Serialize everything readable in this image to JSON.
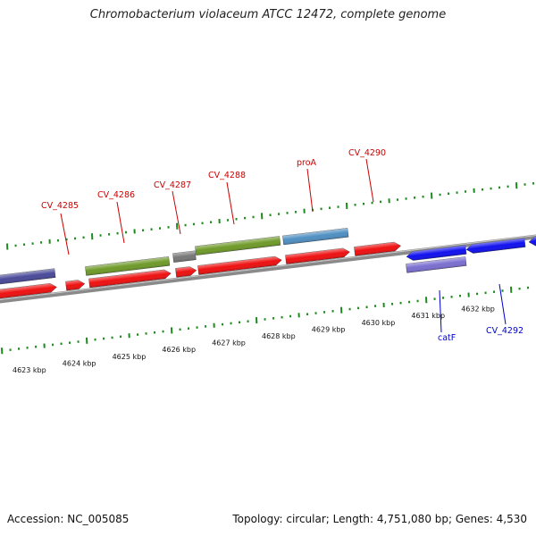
{
  "title": "Chromobacterium violaceum ATCC 12472, complete genome",
  "footer": {
    "accession": "Accession: NC_005085",
    "summary": "Topology: circular; Length: 4,751,080 bp; Genes: 4,530"
  },
  "colors": {
    "backbone": "#8a8a8a",
    "tick": "#1d8a1d",
    "label_fwd": "#cc0000",
    "label_rev": "#0000cc",
    "cds_red": "#ee1111",
    "cds_blue": "#1111ee",
    "cog_purple": "#4a4a9a",
    "cog_green": "#6f9a2a",
    "cog_gray": "#777777",
    "cog_steel": "#4f8fc2",
    "cog_lavender": "#7b6fd0"
  },
  "scale_labels": [
    {
      "text": "4623 kbp",
      "kbp": 4623
    },
    {
      "text": "4624 kbp",
      "kbp": 4624
    },
    {
      "text": "4625 kbp",
      "kbp": 4625
    },
    {
      "text": "4626 kbp",
      "kbp": 4626
    },
    {
      "text": "4627 kbp",
      "kbp": 4627
    },
    {
      "text": "4628 kbp",
      "kbp": 4628
    },
    {
      "text": "4629 kbp",
      "kbp": 4629
    },
    {
      "text": "4630 kbp",
      "kbp": 4630
    },
    {
      "text": "4631 kbp",
      "kbp": 4631
    },
    {
      "text": "4632 kbp",
      "kbp": 4632
    }
  ],
  "gene_labels": [
    {
      "text": "CV_4285",
      "strand": "+"
    },
    {
      "text": "CV_4286",
      "strand": "+"
    },
    {
      "text": "CV_4287",
      "strand": "+"
    },
    {
      "text": "CV_4288",
      "strand": "+"
    },
    {
      "text": "proA",
      "strand": "+"
    },
    {
      "text": "CV_4290",
      "strand": "+"
    },
    {
      "text": "catF",
      "strand": "-"
    },
    {
      "text": "CV_4292",
      "strand": "-"
    }
  ]
}
